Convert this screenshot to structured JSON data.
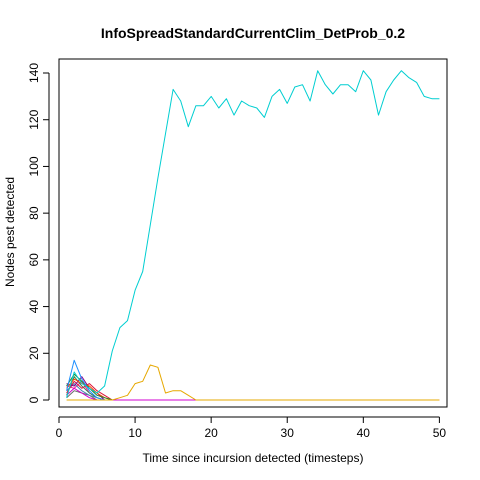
{
  "chart_data": {
    "type": "line",
    "title": "InfoSpreadStandardCurrentClim_DetProb_0.2",
    "xlabel": "Time since incursion detected (timesteps)",
    "ylabel": "Nodes pest detected",
    "xlim": [
      0,
      51
    ],
    "ylim": [
      -3,
      146
    ],
    "xticks": [
      0,
      10,
      20,
      30,
      40,
      50
    ],
    "yticks": [
      0,
      20,
      40,
      60,
      80,
      100,
      120,
      140
    ],
    "grid": false,
    "series": [
      {
        "color": "#00CED1",
        "x": [
          1,
          2,
          3,
          4,
          5,
          6,
          7,
          8,
          9,
          10,
          11,
          12,
          13,
          14,
          15,
          16,
          17,
          18,
          19,
          20,
          21,
          22,
          23,
          24,
          25,
          26,
          27,
          28,
          29,
          30,
          31,
          32,
          33,
          34,
          35,
          36,
          37,
          38,
          39,
          40,
          41,
          42,
          43,
          44,
          45,
          46,
          47,
          48,
          49,
          50
        ],
        "y": [
          1,
          12,
          7,
          5,
          3,
          6,
          21,
          31,
          34,
          47,
          55,
          75,
          95,
          114,
          133,
          128,
          117,
          126,
          126,
          130,
          125,
          129,
          122,
          128,
          126,
          125,
          121,
          130,
          133,
          127,
          134,
          135,
          128,
          141,
          135,
          131,
          135,
          135,
          132,
          141,
          137,
          122,
          132,
          137,
          141,
          138,
          136,
          130,
          129,
          129
        ]
      },
      {
        "color": "#E6A800",
        "x": [
          1,
          2,
          3,
          4,
          5,
          6,
          7,
          8,
          9,
          10,
          11,
          12,
          13,
          14,
          15,
          16,
          17,
          18,
          19,
          20,
          30,
          40,
          50
        ],
        "y": [
          0,
          0,
          0,
          0,
          0,
          0,
          0,
          1,
          2,
          7,
          8,
          15,
          14,
          3,
          4,
          4,
          2,
          0,
          0,
          0,
          0,
          0,
          0
        ]
      },
      {
        "color": "#D000D0",
        "x": [
          1,
          2,
          3,
          4,
          5,
          6,
          7,
          8,
          10,
          20,
          30,
          40,
          50
        ],
        "y": [
          2,
          5,
          3,
          1,
          0,
          0,
          0,
          0,
          0,
          0,
          0,
          0,
          0
        ]
      },
      {
        "color": "#1E90FF",
        "x": [
          1,
          2,
          3,
          4,
          5,
          6,
          7
        ],
        "y": [
          4,
          17,
          9,
          4,
          1,
          0,
          0
        ]
      },
      {
        "color": "#228B22",
        "x": [
          1,
          2,
          3,
          4,
          5,
          6,
          7
        ],
        "y": [
          6,
          11,
          8,
          5,
          2,
          1,
          0
        ]
      },
      {
        "color": "#FF4500",
        "x": [
          1,
          2,
          3,
          4,
          5,
          6,
          7
        ],
        "y": [
          5,
          9,
          7,
          6,
          3,
          1,
          0
        ]
      },
      {
        "color": "#8B008B",
        "x": [
          1,
          2,
          3,
          4,
          5,
          6,
          7
        ],
        "y": [
          7,
          6,
          10,
          5,
          3,
          0,
          0
        ]
      },
      {
        "color": "#DC143C",
        "x": [
          1,
          2,
          3,
          4,
          5,
          6,
          7
        ],
        "y": [
          3,
          8,
          5,
          7,
          4,
          2,
          0
        ]
      },
      {
        "color": "#2E8B57",
        "x": [
          1,
          2,
          3,
          4,
          5,
          6,
          7
        ],
        "y": [
          2,
          10,
          6,
          3,
          1,
          0,
          0
        ]
      },
      {
        "color": "#4682B4",
        "x": [
          1,
          2,
          3,
          4,
          5,
          6,
          7
        ],
        "y": [
          4,
          7,
          4,
          2,
          1,
          0,
          0
        ]
      },
      {
        "color": "#FF1493",
        "x": [
          1,
          2,
          3,
          4,
          5,
          6,
          7
        ],
        "y": [
          6,
          5,
          8,
          3,
          1,
          0,
          0
        ]
      },
      {
        "color": "#696969",
        "x": [
          1,
          2,
          3,
          4,
          5,
          6,
          7
        ],
        "y": [
          1,
          4,
          3,
          2,
          0,
          0,
          0
        ]
      }
    ]
  }
}
